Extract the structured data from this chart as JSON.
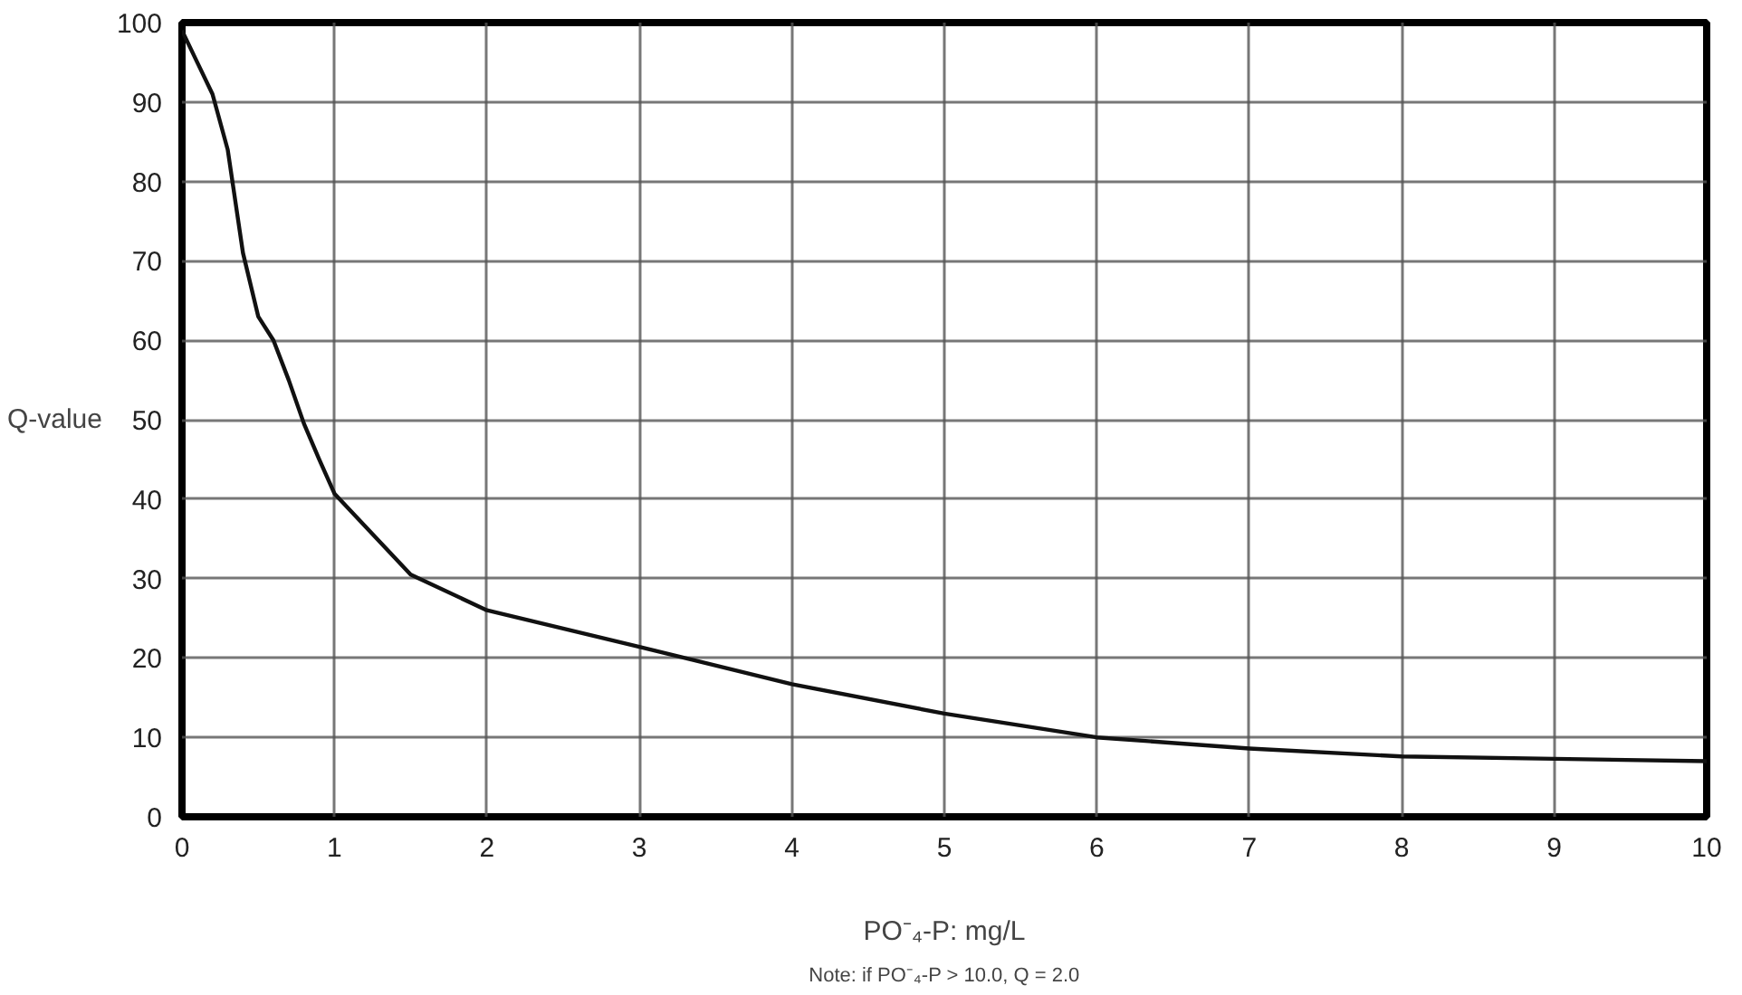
{
  "chart_data": {
    "type": "line",
    "xlabel": "PO⁻₄-P: mg/L",
    "ylabel": "Q-value",
    "annotations": [
      "Note: if PO⁻₄-P > 10.0, Q = 2.0"
    ],
    "xlim": [
      0,
      10
    ],
    "ylim": [
      0,
      100
    ],
    "xticks": [
      0,
      1,
      2,
      3,
      4,
      5,
      6,
      7,
      8,
      9,
      10
    ],
    "yticks": [
      0,
      10,
      20,
      30,
      40,
      50,
      60,
      70,
      80,
      90,
      100
    ],
    "grid": true,
    "line_style": "solid",
    "series": [
      {
        "color": "#111111",
        "x": [
          0,
          0.1,
          0.2,
          0.3,
          0.4,
          0.5,
          0.6,
          0.7,
          0.8,
          0.9,
          1,
          1.5,
          2,
          3,
          4,
          5,
          6,
          7,
          8,
          9,
          10
        ],
        "values": [
          99,
          95,
          91,
          84,
          71,
          63,
          60,
          55,
          49.5,
          45,
          40.7,
          30.5,
          26,
          21.4,
          16.7,
          13,
          10,
          8.6,
          7.6,
          7.3,
          7
        ]
      }
    ]
  }
}
